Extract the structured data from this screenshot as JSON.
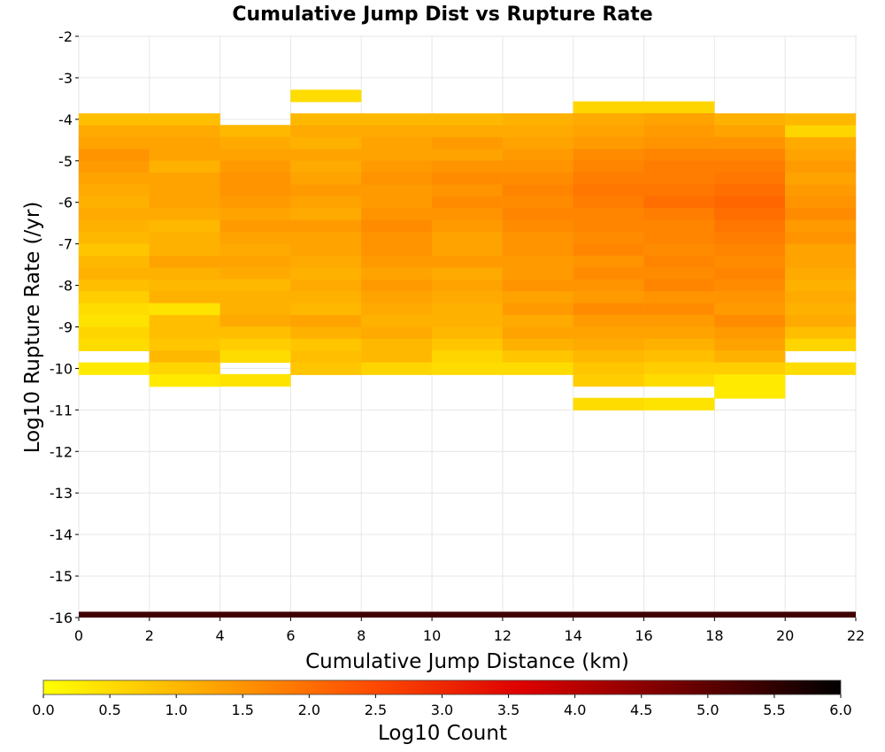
{
  "chart_data": {
    "type": "heatmap",
    "title": "Cumulative Jump Dist vs Rupture Rate",
    "xlabel": "Cumulative Jump Distance (km)",
    "ylabel": "Log10 Rupture Rate (/yr)",
    "xlim": [
      0,
      22
    ],
    "ylim": [
      -16,
      -2
    ],
    "x_ticks": [
      "0",
      "2",
      "4",
      "6",
      "8",
      "10",
      "12",
      "14",
      "16",
      "18",
      "20",
      "22"
    ],
    "y_ticks": [
      "-2",
      "-3",
      "-4",
      "-5",
      "-6",
      "-7",
      "-8",
      "-9",
      "-10",
      "-11",
      "-12",
      "-13",
      "-14",
      "-15",
      "-16"
    ],
    "grid": true,
    "bin_width_x": 2,
    "bin_height_y": 0.2857,
    "colorscale": {
      "label": "Log10 Count",
      "min": 0.0,
      "max": 6.0,
      "ticks": [
        "0.0",
        "0.5",
        "1.0",
        "1.5",
        "2.0",
        "2.5",
        "3.0",
        "3.5",
        "4.0",
        "4.5",
        "5.0",
        "5.5",
        "6.0"
      ],
      "stops": [
        "#ffff00",
        "#ffaa00",
        "#ff5000",
        "#dd0000",
        "#700000",
        "#000000"
      ]
    },
    "columns": [
      {
        "x_start": 0,
        "y_top": -3.86,
        "values": [
          0.9,
          1.2,
          1.3,
          1.5,
          1.4,
          1.3,
          1.2,
          1.1,
          1.2,
          1.1,
          1.0,
          0.8,
          1.0,
          1.1,
          0.9,
          0.7,
          0.5,
          0.4,
          0.6,
          0.5,
          -1,
          0.3
        ]
      },
      {
        "x_start": 2,
        "y_top": -3.86,
        "values": [
          0.9,
          1.2,
          1.3,
          1.3,
          1.1,
          1.3,
          1.3,
          1.3,
          1.2,
          1.0,
          1.1,
          1.1,
          1.3,
          1.1,
          1.0,
          1.1,
          0.4,
          0.9,
          0.9,
          0.8,
          1.0,
          0.6,
          0.3
        ]
      },
      {
        "x_start": 4,
        "y_top": -4.14,
        "values": [
          1.0,
          1.2,
          1.3,
          1.4,
          1.5,
          1.5,
          1.4,
          1.3,
          1.4,
          1.3,
          1.2,
          1.3,
          1.2,
          1.0,
          1.1,
          1.1,
          1.2,
          0.9,
          0.7,
          0.5,
          -1,
          0.4
        ]
      },
      {
        "x_start": 6,
        "y_top": -3.29,
        "values": [
          0.5,
          -1,
          1.0,
          1.2,
          1.1,
          1.3,
          1.2,
          1.3,
          1.4,
          1.3,
          1.2,
          1.4,
          1.3,
          1.3,
          1.2,
          1.1,
          1.2,
          1.1,
          1.0,
          1.3,
          1.1,
          0.8,
          0.9,
          0.8
        ]
      },
      {
        "x_start": 8,
        "y_top": -3.86,
        "values": [
          1.0,
          1.2,
          1.3,
          1.3,
          1.4,
          1.5,
          1.4,
          1.4,
          1.5,
          1.6,
          1.5,
          1.5,
          1.4,
          1.3,
          1.4,
          1.3,
          1.2,
          1.1,
          1.2,
          1.0,
          1.0,
          0.6
        ]
      },
      {
        "x_start": 10,
        "y_top": -3.86,
        "values": [
          1.0,
          1.2,
          1.4,
          1.3,
          1.5,
          1.6,
          1.5,
          1.6,
          1.5,
          1.4,
          1.3,
          1.3,
          1.4,
          1.2,
          1.3,
          1.2,
          1.1,
          1.1,
          1.0,
          0.8,
          0.6,
          0.5
        ]
      },
      {
        "x_start": 12,
        "y_top": -3.86,
        "values": [
          1.1,
          1.2,
          1.3,
          1.4,
          1.5,
          1.6,
          1.7,
          1.6,
          1.7,
          1.6,
          1.5,
          1.5,
          1.4,
          1.4,
          1.5,
          1.3,
          1.4,
          1.2,
          1.3,
          1.1,
          0.8,
          0.5
        ]
      },
      {
        "x_start": 14,
        "y_top": -3.57,
        "values": [
          0.6,
          1.2,
          1.3,
          1.4,
          1.6,
          1.7,
          1.8,
          1.9,
          1.8,
          1.7,
          1.7,
          1.6,
          1.7,
          1.5,
          1.6,
          1.5,
          1.4,
          1.6,
          1.4,
          1.3,
          1.2,
          1.0,
          0.8,
          0.7,
          -1,
          0.5
        ]
      },
      {
        "x_start": 16,
        "y_top": -3.57,
        "values": [
          0.6,
          1.3,
          1.4,
          1.5,
          1.7,
          1.8,
          1.8,
          1.9,
          2.0,
          1.8,
          1.7,
          1.7,
          1.6,
          1.7,
          1.6,
          1.7,
          1.5,
          1.6,
          1.4,
          1.3,
          1.1,
          0.9,
          0.7,
          0.5,
          -1,
          0.4
        ]
      },
      {
        "x_start": 18,
        "y_top": -3.86,
        "values": [
          1.1,
          1.3,
          1.5,
          1.7,
          1.8,
          1.9,
          2.0,
          2.1,
          2.0,
          1.9,
          1.8,
          1.7,
          1.6,
          1.7,
          1.6,
          1.5,
          1.4,
          1.6,
          1.4,
          1.3,
          1.1,
          0.7,
          0.3,
          0.3
        ]
      },
      {
        "x_start": 20,
        "y_top": -3.86,
        "values": [
          1.0,
          0.6,
          1.2,
          1.3,
          1.4,
          1.3,
          1.4,
          1.5,
          1.6,
          1.4,
          1.5,
          1.3,
          1.3,
          1.2,
          1.1,
          1.2,
          1.1,
          1.2,
          0.9,
          0.6,
          -1,
          0.5
        ]
      }
    ],
    "bottom_band": {
      "y_bottom": -16,
      "y_top": -15.86,
      "value": 5.3
    }
  }
}
